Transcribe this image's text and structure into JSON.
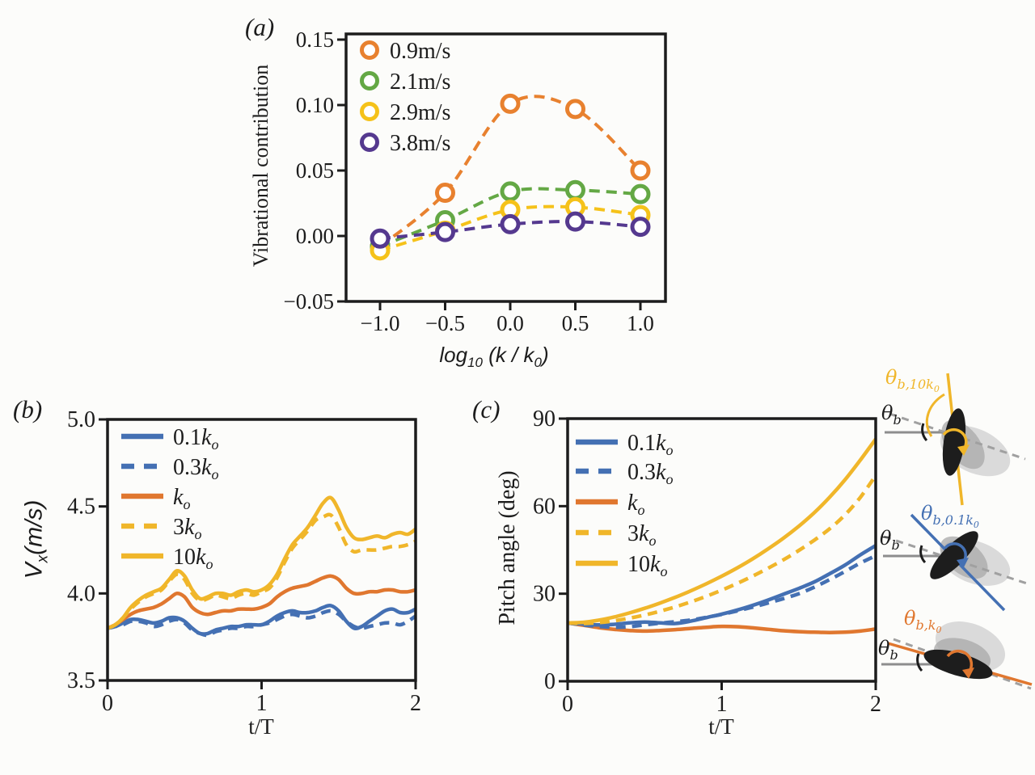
{
  "colors": {
    "orange_a": "#e8812f",
    "green_a": "#64a845",
    "yellow_a": "#f5c21a",
    "purple_a": "#55398f",
    "blue": "#4470b3",
    "orange_line": "#e0772f",
    "yellow_line": "#f0b62a",
    "axis": "#1c1c1c",
    "gray_line": "#8d8d8d",
    "gray_dash": "#a0a0a0",
    "blur_light": "#cccccc",
    "blur_mid": "#a8a8a8",
    "body_dark": "#1d1d1d",
    "background": "#fcfcfa"
  },
  "panels": {
    "a": {
      "letter": "(a)",
      "ylabel": "Vibrational contribution",
      "xlabel_parts": {
        "p1": "log",
        "s1": "10",
        "p2": " (k / k",
        "s2": "0",
        "p3": ")"
      }
    },
    "b": {
      "letter": "(b)",
      "ylabel_parts": {
        "p1": "V",
        "s1": "x",
        "p2": "(m/s)"
      },
      "xlabel": "t/T"
    },
    "c": {
      "letter": "(c)",
      "ylabel": "Pitch angle (deg)",
      "xlabel": "t/T"
    }
  },
  "fish": {
    "items": [
      {
        "id": "10k0",
        "label": {
          "theta": "θ",
          "sub": "b,10k",
          "subsub": "0"
        },
        "ref": {
          "theta": "θ",
          "sub": "b"
        }
      },
      {
        "id": "0.1k0",
        "label": {
          "theta": "θ",
          "sub": "b,0.1k",
          "subsub": "0"
        },
        "ref": {
          "theta": "θ",
          "sub": "b"
        }
      },
      {
        "id": "k0",
        "label": {
          "theta": "θ",
          "sub": "b,k",
          "subsub": "0"
        },
        "ref": {
          "theta": "θ",
          "sub": "b"
        }
      }
    ]
  },
  "chart_data": [
    {
      "id": "a",
      "type": "scatter",
      "title": "",
      "xlabel": "log10 (k / k0)",
      "ylabel": "Vibrational contribution",
      "xlim": [
        -1.26,
        1.19
      ],
      "ylim": [
        -0.05,
        0.154
      ],
      "grid": false,
      "legend_position": "upper left",
      "xticks": [
        {
          "v": -1,
          "label": "−1.0"
        },
        {
          "v": -0.5,
          "label": "−0.5"
        },
        {
          "v": 0,
          "label": "0.0"
        },
        {
          "v": 0.5,
          "label": "0.5"
        },
        {
          "v": 1,
          "label": "1.0"
        }
      ],
      "yticks": [
        {
          "v": -0.05,
          "label": "−0.05"
        },
        {
          "v": 0,
          "label": "0.00"
        },
        {
          "v": 0.05,
          "label": "0.05"
        },
        {
          "v": 0.1,
          "label": "0.10"
        },
        {
          "v": 0.15,
          "label": "0.15"
        }
      ],
      "x": [
        -1,
        -0.5,
        0,
        0.5,
        1
      ],
      "series": [
        {
          "name": "0.9m/s",
          "color": "orange_a",
          "dash": true,
          "marker": true,
          "values": [
            -0.008,
            0.033,
            0.101,
            0.097,
            0.05
          ]
        },
        {
          "name": "2.1m/s",
          "color": "green_a",
          "dash": true,
          "marker": true,
          "values": [
            -0.008,
            0.012,
            0.034,
            0.035,
            0.032
          ]
        },
        {
          "name": "2.9m/s",
          "color": "yellow_a",
          "dash": true,
          "marker": true,
          "values": [
            -0.011,
            0.004,
            0.02,
            0.022,
            0.016
          ]
        },
        {
          "name": "3.8m/s",
          "color": "purple_a",
          "dash": true,
          "marker": true,
          "values": [
            -0.002,
            0.003,
            0.009,
            0.011,
            0.007
          ]
        }
      ],
      "legend": [
        {
          "text": "0.9m/s"
        },
        {
          "text": "2.1m/s"
        },
        {
          "text": "2.9m/s"
        },
        {
          "text": "3.8m/s"
        }
      ]
    },
    {
      "id": "b",
      "type": "line",
      "title": "",
      "xlabel": "t/T",
      "ylabel": "Vx(m/s)",
      "xlim": [
        0,
        2
      ],
      "ylim": [
        3.5,
        5.0
      ],
      "grid": false,
      "legend_position": "upper left",
      "xticks": [
        {
          "v": 0,
          "label": "0"
        },
        {
          "v": 1,
          "label": "1"
        },
        {
          "v": 2,
          "label": "2"
        }
      ],
      "yticks": [
        {
          "v": 3.5,
          "label": "3.5"
        },
        {
          "v": 4.0,
          "label": "4.0"
        },
        {
          "v": 4.5,
          "label": "4.5"
        },
        {
          "v": 5.0,
          "label": "5.0"
        }
      ],
      "x": [
        0,
        0.05,
        0.1,
        0.15,
        0.2,
        0.25,
        0.3,
        0.35,
        0.4,
        0.45,
        0.5,
        0.55,
        0.6,
        0.65,
        0.7,
        0.75,
        0.8,
        0.85,
        0.9,
        0.95,
        1.0,
        1.05,
        1.1,
        1.15,
        1.2,
        1.25,
        1.3,
        1.35,
        1.4,
        1.45,
        1.5,
        1.55,
        1.6,
        1.65,
        1.7,
        1.75,
        1.8,
        1.85,
        1.9,
        1.95,
        2.0
      ],
      "series": [
        {
          "name": "0.1k0",
          "color": "blue",
          "dash": false,
          "values": [
            3.8,
            3.81,
            3.83,
            3.85,
            3.85,
            3.84,
            3.83,
            3.84,
            3.86,
            3.86,
            3.84,
            3.8,
            3.77,
            3.77,
            3.79,
            3.8,
            3.81,
            3.81,
            3.82,
            3.82,
            3.82,
            3.84,
            3.87,
            3.89,
            3.9,
            3.89,
            3.89,
            3.9,
            3.92,
            3.93,
            3.9,
            3.84,
            3.8,
            3.81,
            3.84,
            3.87,
            3.9,
            3.91,
            3.89,
            3.89,
            3.91
          ]
        },
        {
          "name": "0.3k0",
          "color": "blue",
          "dash": true,
          "values": [
            3.8,
            3.81,
            3.82,
            3.84,
            3.84,
            3.83,
            3.81,
            3.82,
            3.84,
            3.85,
            3.83,
            3.79,
            3.77,
            3.76,
            3.78,
            3.79,
            3.8,
            3.8,
            3.81,
            3.81,
            3.82,
            3.83,
            3.85,
            3.87,
            3.88,
            3.87,
            3.86,
            3.87,
            3.89,
            3.9,
            3.88,
            3.84,
            3.81,
            3.8,
            3.81,
            3.82,
            3.83,
            3.83,
            3.82,
            3.84,
            3.87
          ]
        },
        {
          "name": "k0",
          "color": "orange_line",
          "dash": false,
          "values": [
            3.8,
            3.82,
            3.85,
            3.88,
            3.9,
            3.91,
            3.92,
            3.94,
            3.97,
            4.0,
            3.98,
            3.92,
            3.89,
            3.88,
            3.89,
            3.9,
            3.9,
            3.91,
            3.91,
            3.91,
            3.92,
            3.94,
            3.98,
            4.01,
            4.03,
            4.04,
            4.05,
            4.07,
            4.09,
            4.1,
            4.08,
            4.03,
            4.0,
            4.0,
            4.01,
            4.01,
            4.02,
            4.02,
            4.01,
            4.01,
            4.02
          ]
        },
        {
          "name": "3k0",
          "color": "yellow_line",
          "dash": true,
          "values": [
            3.8,
            3.82,
            3.86,
            3.91,
            3.95,
            3.98,
            4.0,
            4.02,
            4.07,
            4.11,
            4.08,
            4.0,
            3.96,
            3.97,
            3.99,
            3.98,
            3.97,
            3.99,
            4.0,
            3.99,
            4.01,
            4.03,
            4.09,
            4.18,
            4.26,
            4.31,
            4.36,
            4.42,
            4.44,
            4.45,
            4.38,
            4.28,
            4.24,
            4.25,
            4.25,
            4.25,
            4.26,
            4.27,
            4.27,
            4.28,
            4.3
          ]
        },
        {
          "name": "10k0",
          "color": "yellow_line",
          "dash": false,
          "values": [
            3.8,
            3.82,
            3.86,
            3.92,
            3.96,
            3.99,
            4.01,
            4.03,
            4.08,
            4.13,
            4.1,
            4.02,
            3.97,
            3.98,
            4.0,
            4.0,
            3.99,
            4.01,
            4.02,
            4.01,
            4.02,
            4.05,
            4.11,
            4.2,
            4.28,
            4.33,
            4.38,
            4.45,
            4.52,
            4.55,
            4.48,
            4.38,
            4.32,
            4.31,
            4.32,
            4.33,
            4.32,
            4.34,
            4.35,
            4.34,
            4.37
          ]
        }
      ],
      "legend": [
        {
          "prefix": "0.1",
          "base": "k",
          "sub": "o"
        },
        {
          "prefix": "0.3",
          "base": "k",
          "sub": "o"
        },
        {
          "prefix": "",
          "base": "k",
          "sub": "o"
        },
        {
          "prefix": "3",
          "base": "k",
          "sub": "o"
        },
        {
          "prefix": "10",
          "base": "k",
          "sub": "o"
        }
      ]
    },
    {
      "id": "c",
      "type": "line",
      "title": "",
      "xlabel": "t/T",
      "ylabel": "Pitch angle (deg)",
      "xlim": [
        0,
        2
      ],
      "ylim": [
        0,
        90
      ],
      "grid": false,
      "legend_position": "upper left",
      "xticks": [
        {
          "v": 0,
          "label": "0"
        },
        {
          "v": 1,
          "label": "1"
        },
        {
          "v": 2,
          "label": "2"
        }
      ],
      "yticks": [
        {
          "v": 0,
          "label": "0"
        },
        {
          "v": 30,
          "label": "30"
        },
        {
          "v": 60,
          "label": "60"
        },
        {
          "v": 90,
          "label": "90"
        }
      ],
      "x": [
        0,
        0.1,
        0.2,
        0.3,
        0.4,
        0.5,
        0.6,
        0.7,
        0.8,
        0.9,
        1.0,
        1.1,
        1.2,
        1.3,
        1.4,
        1.5,
        1.6,
        1.7,
        1.8,
        1.9,
        2.0
      ],
      "series": [
        {
          "name": "k0",
          "color": "orange_line",
          "dash": false,
          "values": [
            20.0,
            19.2,
            18.4,
            17.8,
            17.4,
            17.2,
            17.4,
            17.7,
            18.1,
            18.5,
            18.8,
            18.7,
            18.3,
            17.8,
            17.3,
            17.0,
            16.8,
            16.7,
            16.8,
            17.2,
            17.9
          ]
        },
        {
          "name": "0.3k0",
          "color": "blue",
          "dash": true,
          "values": [
            20.0,
            19.3,
            18.8,
            18.5,
            18.7,
            19.3,
            19.9,
            20.4,
            21.0,
            21.9,
            22.9,
            24.1,
            25.4,
            26.8,
            28.3,
            30.0,
            32.2,
            34.8,
            37.6,
            40.5,
            43.0
          ]
        },
        {
          "name": "0.1k0",
          "color": "blue",
          "dash": false,
          "values": [
            20.0,
            19.6,
            19.3,
            19.5,
            20.0,
            20.3,
            20.0,
            19.8,
            20.6,
            21.8,
            23.0,
            24.4,
            26.0,
            27.8,
            29.8,
            31.8,
            34.0,
            36.8,
            39.8,
            43.3,
            46.5
          ]
        },
        {
          "name": "3k0",
          "color": "yellow_line",
          "dash": true,
          "values": [
            20.0,
            19.8,
            20.1,
            20.7,
            21.6,
            22.7,
            24.0,
            25.5,
            27.2,
            29.1,
            31.2,
            33.5,
            36.0,
            38.7,
            41.6,
            44.8,
            48.3,
            52.2,
            57.0,
            63.0,
            70.5
          ]
        },
        {
          "name": "10k0",
          "color": "yellow_line",
          "dash": false,
          "values": [
            20.0,
            20.2,
            20.9,
            22.0,
            23.4,
            25.0,
            26.8,
            28.8,
            31.0,
            33.4,
            36.0,
            38.8,
            41.9,
            45.3,
            49.0,
            53.1,
            57.7,
            63.0,
            69.0,
            75.8,
            83.0
          ]
        }
      ],
      "legend": [
        {
          "prefix": "0.1",
          "base": "k",
          "sub": "o"
        },
        {
          "prefix": "0.3",
          "base": "k",
          "sub": "o"
        },
        {
          "prefix": "",
          "base": "k",
          "sub": "o"
        },
        {
          "prefix": "3",
          "base": "k",
          "sub": "o"
        },
        {
          "prefix": "10",
          "base": "k",
          "sub": "o"
        }
      ],
      "legend_order": [
        "0.1k0",
        "0.3k0",
        "k0",
        "3k0",
        "10k0"
      ]
    }
  ]
}
